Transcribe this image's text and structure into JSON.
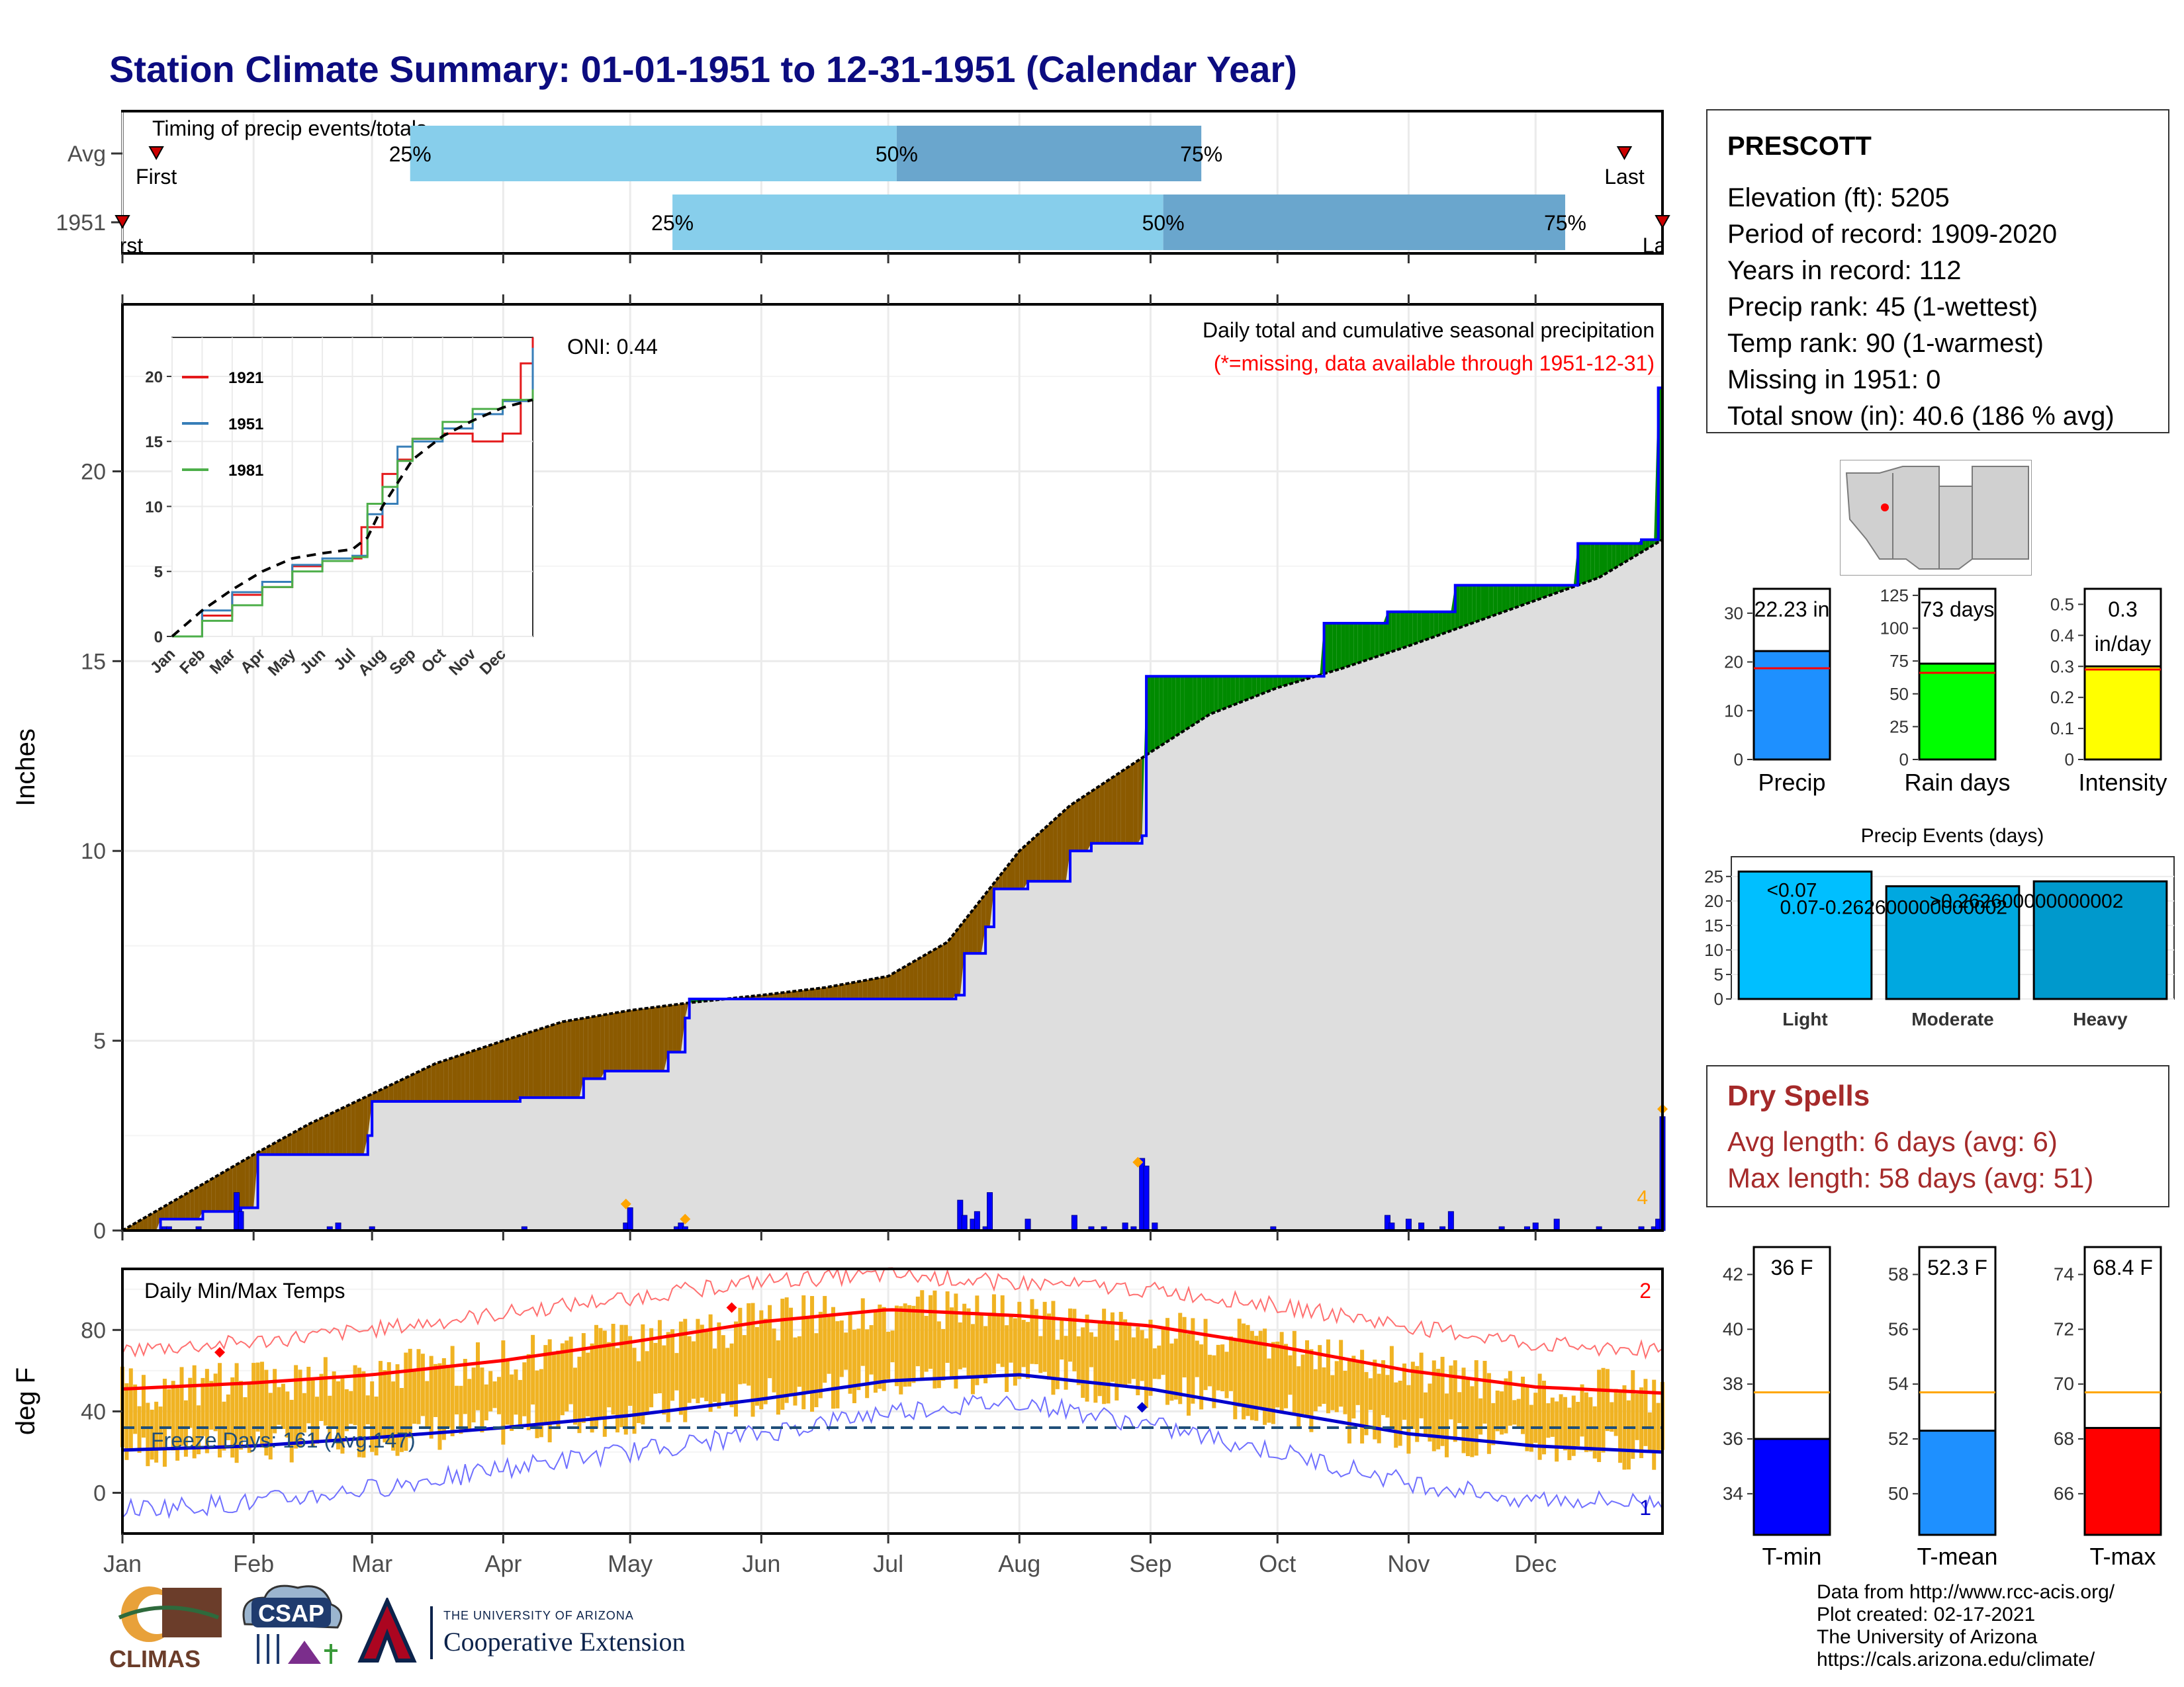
{
  "header": {
    "title": "Station Climate Summary: 01-01-1951 to 12-31-1951 (Calendar Year)"
  },
  "timing": {
    "label": "Timing of precip events/totals",
    "rows": [
      {
        "row_label": "Avg",
        "first_label": "First",
        "last_label": "Last",
        "q25_doy": 69,
        "q50_doy": 184,
        "q75_doy": 256,
        "first_doy": 9,
        "last_doy": 356
      },
      {
        "row_label": "1951",
        "first_label": "First",
        "last_label": "Last",
        "q25_doy": 131,
        "q50_doy": 247,
        "q75_doy": 342,
        "first_doy": 1,
        "last_doy": 365
      }
    ],
    "q_labels": [
      "25%",
      "50%",
      "75%"
    ]
  },
  "station": {
    "name": "PRESCOTT",
    "lines": [
      "Elevation (ft): 5205",
      "Period of record: 1909-2020",
      "Years in record: 112",
      "Precip rank: 45 (1-wettest)",
      "Temp rank: 90 (1-warmest)",
      "Missing in 1951: 0",
      "Total snow (in): 40.6 (186 % avg)"
    ]
  },
  "precip_panel": {
    "title_line1": "Daily total and cumulative seasonal precipitation",
    "title_line2": "(*=missing, data available through 1951-12-31)",
    "oni": "ONI: 0.44",
    "ylabel": "Inches",
    "corner_note": "4"
  },
  "temp_panel": {
    "title": "Daily Min/Max Temps",
    "ylabel": "deg F",
    "freeze_text": "Freeze Days: 161 (Avg:147)",
    "corner_top": "2",
    "corner_bottom": "1"
  },
  "month_labels": [
    "Jan",
    "Feb",
    "Mar",
    "Apr",
    "May",
    "Jun",
    "Jul",
    "Aug",
    "Sep",
    "Oct",
    "Nov",
    "Dec"
  ],
  "dry_spells": {
    "title": "Dry Spells",
    "avg_line": "Avg length: 6 days (avg: 6)",
    "max_line": "Max length: 58 days (avg: 51)"
  },
  "credits": {
    "line1": "Data from http://www.rcc-acis.org/",
    "line2": "Plot created: 02-17-2021",
    "line3": "The University of Arizona",
    "line4": "https://cals.arizona.edu/climate/"
  },
  "logos": {
    "climas": "CLIMAS",
    "csap": "CSAP",
    "ua_line1": "THE UNIVERSITY OF ARIZONA",
    "ua_line2": "Cooperative Extension"
  },
  "chart_data": [
    {
      "type": "line",
      "title": "Daily total and cumulative seasonal precipitation",
      "ylabel": "Inches",
      "ylim": [
        0,
        24
      ],
      "x_unit": "day of year",
      "series": [
        {
          "name": "",
          "role": "average cumulative",
          "x": [
            1,
            15,
            32,
            45,
            60,
            75,
            91,
            105,
            121,
            135,
            152,
            167,
            182,
            196,
            213,
            225,
            244,
            258,
            274,
            289,
            305,
            320,
            335,
            350,
            365
          ],
          "y": [
            0,
            0.9,
            2.0,
            2.8,
            3.6,
            4.4,
            5.0,
            5.5,
            5.8,
            6.0,
            6.2,
            6.4,
            6.7,
            7.6,
            10.0,
            11.2,
            12.6,
            13.6,
            14.3,
            14.8,
            15.4,
            16.0,
            16.6,
            17.2,
            18.2
          ]
        },
        {
          "name": "",
          "role": "1951 cumulative",
          "x": [
            1,
            10,
            20,
            29,
            33,
            59,
            60,
            90,
            95,
            110,
            115,
            130,
            134,
            135,
            198,
            200,
            205,
            207,
            215,
            225,
            230,
            242,
            243,
            280,
            285,
            300,
            316,
            330,
            345,
            360,
            364,
            365
          ],
          "y": [
            0,
            0.3,
            0.5,
            0.6,
            2.0,
            2.5,
            3.4,
            3.4,
            3.5,
            4.0,
            4.2,
            4.7,
            5.6,
            6.1,
            6.2,
            7.3,
            8.0,
            9.0,
            9.2,
            10.0,
            10.2,
            10.4,
            14.6,
            14.6,
            16.0,
            16.3,
            17.0,
            17.0,
            18.1,
            18.2,
            22.2,
            22.2
          ]
        },
        {
          "name": "",
          "role": "daily precipitation (bars)",
          "x": [
            11,
            12,
            19,
            28,
            29,
            50,
            52,
            60,
            96,
            120,
            121,
            132,
            133,
            134,
            199,
            200,
            202,
            203,
            205,
            206,
            215,
            226,
            230,
            233,
            238,
            240,
            242,
            243,
            245,
            273,
            300,
            301,
            305,
            308,
            313,
            315,
            327,
            333,
            335,
            340,
            350,
            360,
            363,
            364,
            365
          ],
          "y": [
            0.1,
            0.1,
            0.1,
            1.0,
            0.5,
            0.1,
            0.2,
            0.1,
            0.1,
            0.2,
            0.6,
            0.1,
            0.2,
            0.1,
            0.8,
            0.4,
            0.3,
            0.5,
            0.1,
            1.0,
            0.3,
            0.4,
            0.1,
            0.1,
            0.2,
            0.1,
            1.9,
            1.7,
            0.2,
            0.1,
            0.4,
            0.2,
            0.3,
            0.2,
            0.1,
            0.5,
            0.1,
            0.1,
            0.2,
            0.3,
            0.1,
            0.1,
            0.1,
            0.3,
            3.0
          ]
        }
      ],
      "markers": [
        {
          "x": 120,
          "y": 0.7
        },
        {
          "x": 134,
          "y": 0.3
        },
        {
          "x": 241,
          "y": 1.8
        },
        {
          "x": 365,
          "y": 3.2
        }
      ]
    },
    {
      "type": "line",
      "title": "",
      "inset": true,
      "ylim": [
        0,
        23
      ],
      "yticks": [
        0,
        5,
        10,
        15,
        20
      ],
      "xticks": [
        "Jan",
        "Feb",
        "Mar",
        "Apr",
        "May",
        "Jun",
        "Jul",
        "Aug",
        "Sep",
        "Oct",
        "Nov",
        "Dec"
      ],
      "series": [
        {
          "name": "1921",
          "color": "#e41a1c",
          "x": [
            0,
            1,
            2,
            3,
            4,
            5,
            6,
            6.3,
            7,
            7.5,
            8,
            9,
            10,
            11,
            11.6,
            12
          ],
          "y": [
            0,
            1.6,
            3.2,
            3.8,
            5.4,
            5.8,
            6.0,
            8.4,
            12.5,
            13.6,
            15.2,
            15.6,
            15.0,
            15.6,
            21.0,
            23.0
          ]
        },
        {
          "name": "1951",
          "color": "#377eb8",
          "x": [
            0,
            1,
            2,
            3,
            4,
            5,
            6,
            6.5,
            7,
            7.5,
            8,
            9,
            10,
            11,
            11.8,
            12
          ],
          "y": [
            0,
            2.0,
            3.4,
            4.2,
            5.5,
            6.0,
            6.2,
            9.4,
            10.2,
            14.6,
            15.0,
            16.0,
            17.1,
            18.1,
            18.2,
            22.2
          ]
        },
        {
          "name": "1981",
          "color": "#4daf4a",
          "x": [
            0,
            1,
            2,
            3,
            4,
            5,
            6,
            6.5,
            7,
            7.5,
            8,
            9,
            10,
            11,
            12
          ],
          "y": [
            0,
            1.2,
            2.4,
            3.8,
            5.0,
            5.8,
            6.1,
            10.2,
            11.5,
            13.5,
            15.2,
            16.5,
            17.5,
            18.2,
            19.0
          ]
        },
        {
          "name": "",
          "role": "average",
          "color": "#000000",
          "x": [
            0,
            1,
            2,
            3,
            4,
            5,
            6,
            6.5,
            7,
            8,
            9,
            10,
            11,
            12
          ],
          "y": [
            0,
            2.0,
            3.6,
            5.0,
            6.0,
            6.4,
            6.7,
            7.6,
            10.0,
            13.6,
            15.4,
            16.6,
            17.6,
            18.2
          ]
        }
      ]
    },
    {
      "type": "bar",
      "title": "Daily Min/Max Temps",
      "ylabel": "deg F",
      "ylim": [
        -20,
        110
      ],
      "yticks": [
        0,
        40,
        80
      ],
      "series": [
        {
          "name": "",
          "role": "normal max",
          "x": [
            1,
            32,
            60,
            91,
            121,
            152,
            182,
            213,
            244,
            274,
            305,
            335,
            365
          ],
          "y": [
            51,
            54,
            58,
            65,
            74,
            84,
            90,
            87,
            82,
            72,
            60,
            52,
            49
          ]
        },
        {
          "name": "",
          "role": "normal min",
          "x": [
            1,
            32,
            60,
            91,
            121,
            152,
            182,
            213,
            244,
            274,
            305,
            335,
            365
          ],
          "y": [
            21,
            23,
            27,
            32,
            38,
            46,
            55,
            58,
            51,
            40,
            29,
            23,
            20
          ]
        },
        {
          "name": "",
          "role": "record max",
          "x": [
            1,
            32,
            60,
            91,
            121,
            152,
            182,
            213,
            244,
            274,
            305,
            335,
            365
          ],
          "y": [
            70,
            74,
            80,
            88,
            96,
            104,
            107,
            103,
            100,
            92,
            82,
            73,
            70
          ]
        },
        {
          "name": "",
          "role": "record min",
          "x": [
            1,
            32,
            60,
            91,
            121,
            152,
            182,
            213,
            244,
            274,
            305,
            335,
            365
          ],
          "y": [
            -8,
            -5,
            2,
            12,
            20,
            29,
            40,
            45,
            33,
            20,
            5,
            -3,
            -5
          ]
        }
      ],
      "freeze_line": 32,
      "markers": [
        {
          "x": 24,
          "y": 69,
          "color": "#ff0000"
        },
        {
          "x": 145,
          "y": 91,
          "color": "#ff0000"
        },
        {
          "x": 242,
          "y": 42,
          "color": "#0000cc"
        }
      ]
    },
    {
      "type": "bar",
      "title": "",
      "categories": [
        "Precip"
      ],
      "values": [
        22.23
      ],
      "avg": 18.7,
      "label": "22.23 in",
      "yticks": [
        0,
        10,
        20,
        30
      ],
      "ylim": [
        0,
        35
      ],
      "color": "#1e90ff"
    },
    {
      "type": "bar",
      "title": "",
      "categories": [
        "Rain days"
      ],
      "values": [
        73
      ],
      "avg": 66,
      "label": "73 days",
      "yticks": [
        0,
        25,
        50,
        75,
        100,
        125
      ],
      "ylim": [
        0,
        130
      ],
      "color": "#00ff00"
    },
    {
      "type": "bar",
      "title": "",
      "categories": [
        "Intensity"
      ],
      "values": [
        0.3
      ],
      "avg": 0.29,
      "label": "0.3",
      "label2": "in/day",
      "yticks": [
        0.0,
        0.1,
        0.2,
        0.3,
        0.4,
        0.5
      ],
      "ylim": [
        0,
        0.55
      ],
      "color": "#ffff00"
    },
    {
      "type": "bar",
      "title": "Precip Events (days)",
      "categories": [
        "Light",
        "Moderate",
        "Heavy"
      ],
      "values": [
        26,
        23,
        24
      ],
      "bar_labels": [
        "<0.07",
        "0.07-0.262600000000002",
        ">0.262600000000002"
      ],
      "yticks": [
        0,
        5,
        10,
        15,
        20,
        25
      ],
      "ylim": [
        0,
        27
      ],
      "colors": [
        "#00bfff",
        "#00a8e0",
        "#0099cc"
      ]
    },
    {
      "type": "bar",
      "title": "",
      "categories": [
        "T-min"
      ],
      "values": [
        36
      ],
      "avg": 37.7,
      "label": "36 F",
      "yticks": [
        34,
        36,
        38,
        40,
        42
      ],
      "ylim": [
        32.5,
        43
      ],
      "color": "#0000ff"
    },
    {
      "type": "bar",
      "title": "",
      "categories": [
        "T-mean"
      ],
      "values": [
        52.3
      ],
      "avg": 53.7,
      "label": "52.3 F",
      "yticks": [
        50,
        52,
        54,
        56,
        58
      ],
      "ylim": [
        48.5,
        59
      ],
      "color": "#1e90ff"
    },
    {
      "type": "bar",
      "title": "",
      "categories": [
        "T-max"
      ],
      "values": [
        68.4
      ],
      "avg": 69.7,
      "label": "68.4 F",
      "yticks": [
        66,
        68,
        70,
        72,
        74
      ],
      "ylim": [
        64.5,
        75
      ],
      "color": "#ff0000"
    }
  ]
}
